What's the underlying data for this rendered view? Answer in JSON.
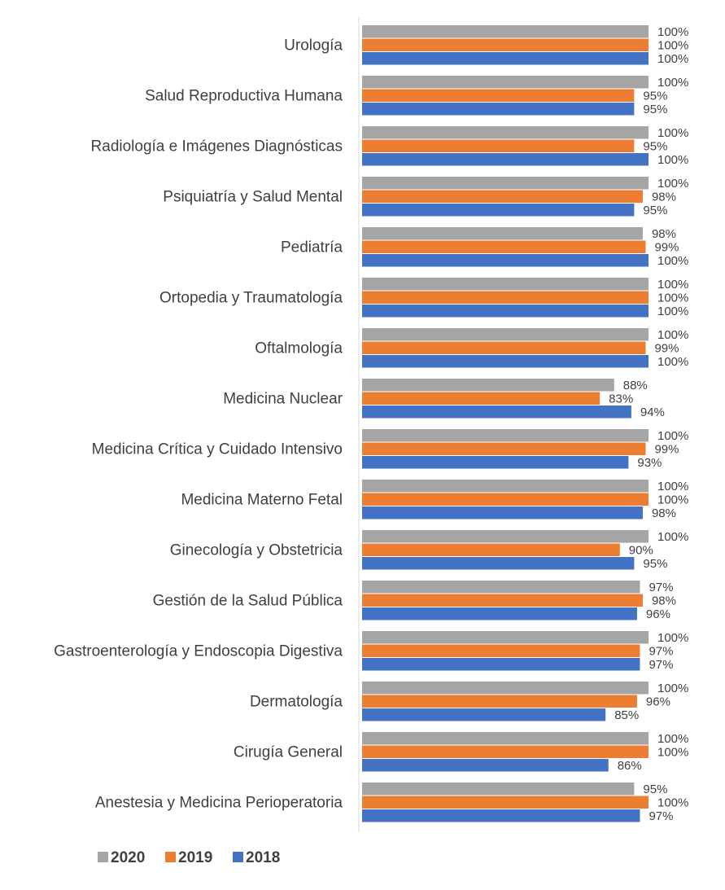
{
  "chart_data": {
    "type": "bar",
    "orientation": "horizontal",
    "categories": [
      "Urología",
      "Salud Reproductiva Humana",
      "Radiología e Imágenes Diagnósticas",
      "Psiquiatría y Salud Mental",
      "Pediatría",
      "Ortopedia y Traumatología",
      "Oftalmología",
      "Medicina Nuclear",
      "Medicina Crítica y Cuidado Intensivo",
      "Medicina Materno Fetal",
      "Ginecología y Obstetricia",
      "Gestión de la Salud Pública",
      "Gastroenterología y Endoscopia Digestiva",
      "Dermatología",
      "Cirugía General",
      "Anestesia y Medicina Perioperatoria"
    ],
    "series": [
      {
        "name": "2020",
        "color": "#a5a5a5",
        "values": [
          100,
          100,
          100,
          100,
          98,
          100,
          100,
          88,
          100,
          100,
          100,
          97,
          100,
          100,
          100,
          95
        ]
      },
      {
        "name": "2019",
        "color": "#ed7d31",
        "values": [
          100,
          95,
          95,
          98,
          99,
          100,
          99,
          83,
          99,
          100,
          90,
          98,
          97,
          96,
          100,
          100
        ]
      },
      {
        "name": "2018",
        "color": "#4472c4",
        "values": [
          100,
          95,
          100,
          95,
          100,
          100,
          100,
          94,
          93,
          98,
          95,
          96,
          97,
          85,
          86,
          97
        ]
      }
    ],
    "value_suffix": "%",
    "xlim": [
      0,
      100
    ],
    "grid": false,
    "legend": "bottom-left",
    "title": "",
    "xlabel": "",
    "ylabel": ""
  }
}
